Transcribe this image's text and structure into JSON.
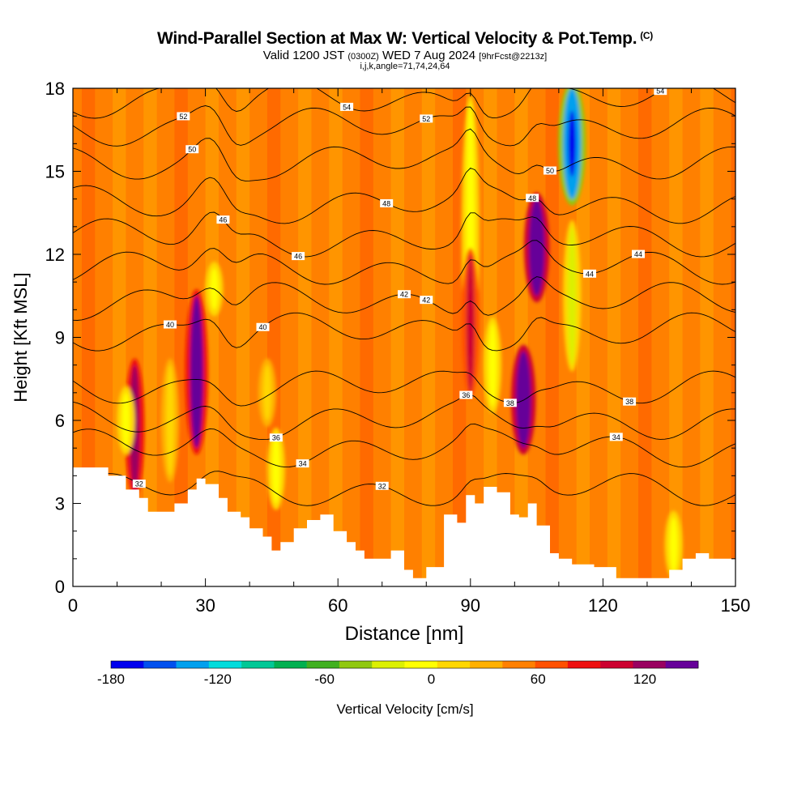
{
  "header": {
    "title": "Wind-Parallel Section at Max W: Vertical Velocity & Pot.Temp.",
    "copyright": "(C)",
    "valid_prefix": "Valid 1200 JST",
    "valid_utc": "(0300Z)",
    "valid_date": "WED 7 Aug 2024",
    "forecast_info": "[9hrFcst@2213z]",
    "indices": "i,j,k,angle=71,74,24,64"
  },
  "colorbar": {
    "label": "Vertical Velocity [cm/s]",
    "range": [
      -180,
      150
    ],
    "step": 15,
    "tick_labels": [
      "-180",
      "-120",
      "-60",
      "0",
      "60",
      "120"
    ],
    "colors": [
      "#0000ee",
      "#0050ee",
      "#00a0ee",
      "#00dcdc",
      "#00c896",
      "#00b050",
      "#40b020",
      "#90c810",
      "#dcf000",
      "#ffff00",
      "#ffd700",
      "#ffb000",
      "#ff8000",
      "#ff5000",
      "#ee1010",
      "#cc0030",
      "#990060",
      "#660099"
    ]
  },
  "chart_data": {
    "type": "heatmap",
    "xlabel": "Distance [nm]",
    "ylabel": "Height [Kft MSL]",
    "xlim": [
      0,
      150
    ],
    "ylim": [
      0,
      18
    ],
    "x_ticks": [
      0,
      30,
      60,
      90,
      120,
      150
    ],
    "y_ticks": [
      0,
      3,
      6,
      9,
      12,
      15,
      18
    ],
    "terrain_kft": [
      [
        0,
        4.3
      ],
      [
        5,
        4.3
      ],
      [
        8,
        4.0
      ],
      [
        12,
        3.5
      ],
      [
        15,
        3.2
      ],
      [
        17,
        2.7
      ],
      [
        21,
        2.7
      ],
      [
        23,
        3.0
      ],
      [
        26,
        3.5
      ],
      [
        28,
        3.9
      ],
      [
        30,
        3.7
      ],
      [
        33,
        3.2
      ],
      [
        35,
        2.7
      ],
      [
        38,
        2.5
      ],
      [
        40,
        2.1
      ],
      [
        43,
        1.8
      ],
      [
        45,
        1.3
      ],
      [
        47,
        1.6
      ],
      [
        50,
        2.1
      ],
      [
        53,
        2.4
      ],
      [
        56,
        2.6
      ],
      [
        59,
        2.0
      ],
      [
        62,
        1.6
      ],
      [
        64,
        1.3
      ],
      [
        66,
        1.0
      ],
      [
        68,
        1.0
      ],
      [
        72,
        1.3
      ],
      [
        75,
        0.6
      ],
      [
        77,
        0.3
      ],
      [
        80,
        0.7
      ],
      [
        84,
        2.6
      ],
      [
        87,
        2.3
      ],
      [
        89,
        3.3
      ],
      [
        91,
        3.0
      ],
      [
        93,
        3.6
      ],
      [
        96,
        3.4
      ],
      [
        99,
        2.6
      ],
      [
        101,
        2.5
      ],
      [
        103,
        3.0
      ],
      [
        105,
        2.2
      ],
      [
        108,
        1.2
      ],
      [
        110,
        1.0
      ],
      [
        113,
        0.8
      ],
      [
        118,
        0.7
      ],
      [
        123,
        0.3
      ],
      [
        130,
        0.3
      ],
      [
        135,
        0.6
      ],
      [
        138,
        1.0
      ],
      [
        141,
        1.2
      ],
      [
        144,
        1.0
      ],
      [
        150,
        1.0
      ]
    ],
    "theta_contours": [
      {
        "label": "32",
        "ref_kft": 3.5
      },
      {
        "label": "34",
        "ref_kft": 5.0
      },
      {
        "label": "36",
        "ref_kft": 6.0
      },
      {
        "label": "38",
        "ref_kft": 7.2
      },
      {
        "label": "40",
        "ref_kft": 9.2
      },
      {
        "label": "42",
        "ref_kft": 10.3
      },
      {
        "label": "44",
        "ref_kft": 11.5
      },
      {
        "label": "46",
        "ref_kft": 12.6
      },
      {
        "label": "48",
        "ref_kft": 13.8
      },
      {
        "label": "50",
        "ref_kft": 15.3
      },
      {
        "label": "52",
        "ref_kft": 16.6
      },
      {
        "label": "54",
        "ref_kft": 17.6
      }
    ],
    "vertical_velocity_features": [
      {
        "x_nm": 14,
        "z_bottom_kft": 3.5,
        "z_top_kft": 8.0,
        "w_cm_s": 70
      },
      {
        "x_nm": 12,
        "z_bottom_kft": 5.0,
        "z_top_kft": 7.0,
        "w_cm_s": -45
      },
      {
        "x_nm": 28,
        "z_bottom_kft": 5.0,
        "z_top_kft": 10.5,
        "w_cm_s": 95
      },
      {
        "x_nm": 22,
        "z_bottom_kft": 4.0,
        "z_top_kft": 8.0,
        "w_cm_s": -30
      },
      {
        "x_nm": 90,
        "z_bottom_kft": 8.0,
        "z_top_kft": 17.5,
        "w_cm_s": -45
      },
      {
        "x_nm": 90,
        "z_bottom_kft": 7.0,
        "z_top_kft": 12.0,
        "w_cm_s": 55
      },
      {
        "x_nm": 95,
        "z_bottom_kft": 6.5,
        "z_top_kft": 9.5,
        "w_cm_s": -45
      },
      {
        "x_nm": 102,
        "z_bottom_kft": 5.0,
        "z_top_kft": 8.5,
        "w_cm_s": 110
      },
      {
        "x_nm": 105,
        "z_bottom_kft": 10.5,
        "z_top_kft": 14.0,
        "w_cm_s": 115
      },
      {
        "x_nm": 113,
        "z_bottom_kft": 14.0,
        "z_top_kft": 18.0,
        "w_cm_s": -150
      },
      {
        "x_nm": 113,
        "z_bottom_kft": 8.0,
        "z_top_kft": 13.0,
        "w_cm_s": -50
      },
      {
        "x_nm": 44,
        "z_bottom_kft": 6.0,
        "z_top_kft": 8.0,
        "w_cm_s": -30
      },
      {
        "x_nm": 46,
        "z_bottom_kft": 3.0,
        "z_top_kft": 5.5,
        "w_cm_s": -35
      },
      {
        "x_nm": 32,
        "z_bottom_kft": 10.0,
        "z_top_kft": 11.5,
        "w_cm_s": -35
      },
      {
        "x_nm": 136,
        "z_bottom_kft": 0.5,
        "z_top_kft": 2.5,
        "w_cm_s": -40
      }
    ]
  }
}
